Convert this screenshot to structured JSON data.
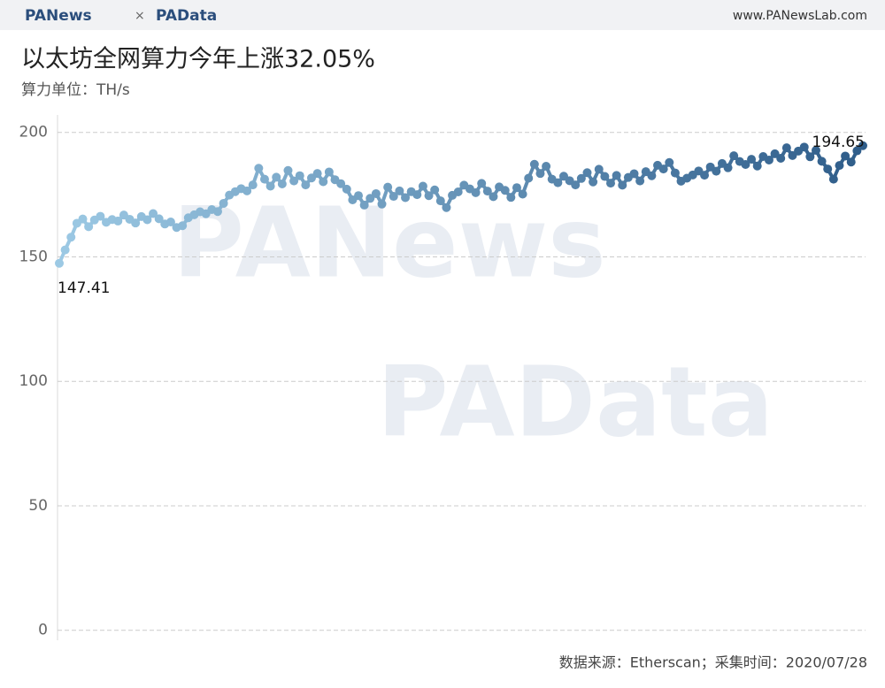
{
  "header": {
    "logo_left": "PANews",
    "separator": "×",
    "logo_right": "PAData",
    "site": "www.PANewsLab.com"
  },
  "watermarks": [
    "PANews",
    "PAData"
  ],
  "footer": "数据来源：Etherscan；采集时间：2020/07/28",
  "chart_data": {
    "type": "line",
    "title": "以太坊全网算力今年上涨32.05%",
    "subtitle": "算力单位：TH/s",
    "values": [
      147.41,
      152.8,
      157.9,
      163.5,
      165.2,
      162.1,
      164.8,
      166.3,
      163.9,
      165.0,
      164.4,
      166.8,
      165.1,
      163.6,
      166.2,
      164.9,
      167.4,
      165.3,
      163.2,
      164.0,
      161.8,
      162.5,
      165.7,
      166.9,
      168.1,
      167.3,
      169.0,
      168.2,
      171.5,
      174.8,
      176.2,
      177.4,
      176.5,
      178.9,
      185.6,
      181.2,
      178.4,
      182.0,
      179.3,
      184.7,
      180.5,
      182.6,
      178.9,
      181.7,
      183.5,
      180.2,
      184.1,
      181.0,
      179.4,
      177.2,
      172.9,
      174.6,
      170.8,
      173.5,
      175.4,
      171.2,
      178.0,
      174.3,
      176.5,
      173.8,
      176.2,
      175.0,
      178.4,
      174.6,
      176.9,
      172.5,
      169.8,
      174.7,
      176.1,
      178.8,
      177.3,
      175.8,
      179.5,
      176.4,
      174.2,
      178.1,
      176.7,
      173.9,
      177.8,
      175.2,
      181.6,
      187.2,
      183.5,
      186.4,
      181.2,
      179.8,
      182.4,
      180.6,
      178.9,
      181.5,
      183.8,
      180.1,
      185.2,
      182.3,
      179.6,
      182.7,
      178.8,
      181.9,
      183.4,
      180.5,
      184.2,
      182.6,
      186.8,
      185.3,
      187.9,
      183.7,
      180.4,
      181.6,
      182.9,
      184.5,
      182.8,
      186.1,
      184.4,
      187.5,
      185.8,
      190.6,
      188.3,
      187.1,
      189.2,
      186.5,
      190.3,
      188.9,
      191.4,
      189.6,
      193.8,
      190.7,
      192.5,
      194.1,
      190.2,
      192.8,
      188.4,
      185.3,
      181.2,
      186.7,
      190.5,
      188.1,
      192.6,
      194.65
    ],
    "color_start": "#9cc9e4",
    "color_end": "#2f5d8a",
    "ylim": [
      -4,
      207
    ],
    "yticks": [
      0,
      50,
      100,
      150,
      200
    ],
    "grid": true
  }
}
